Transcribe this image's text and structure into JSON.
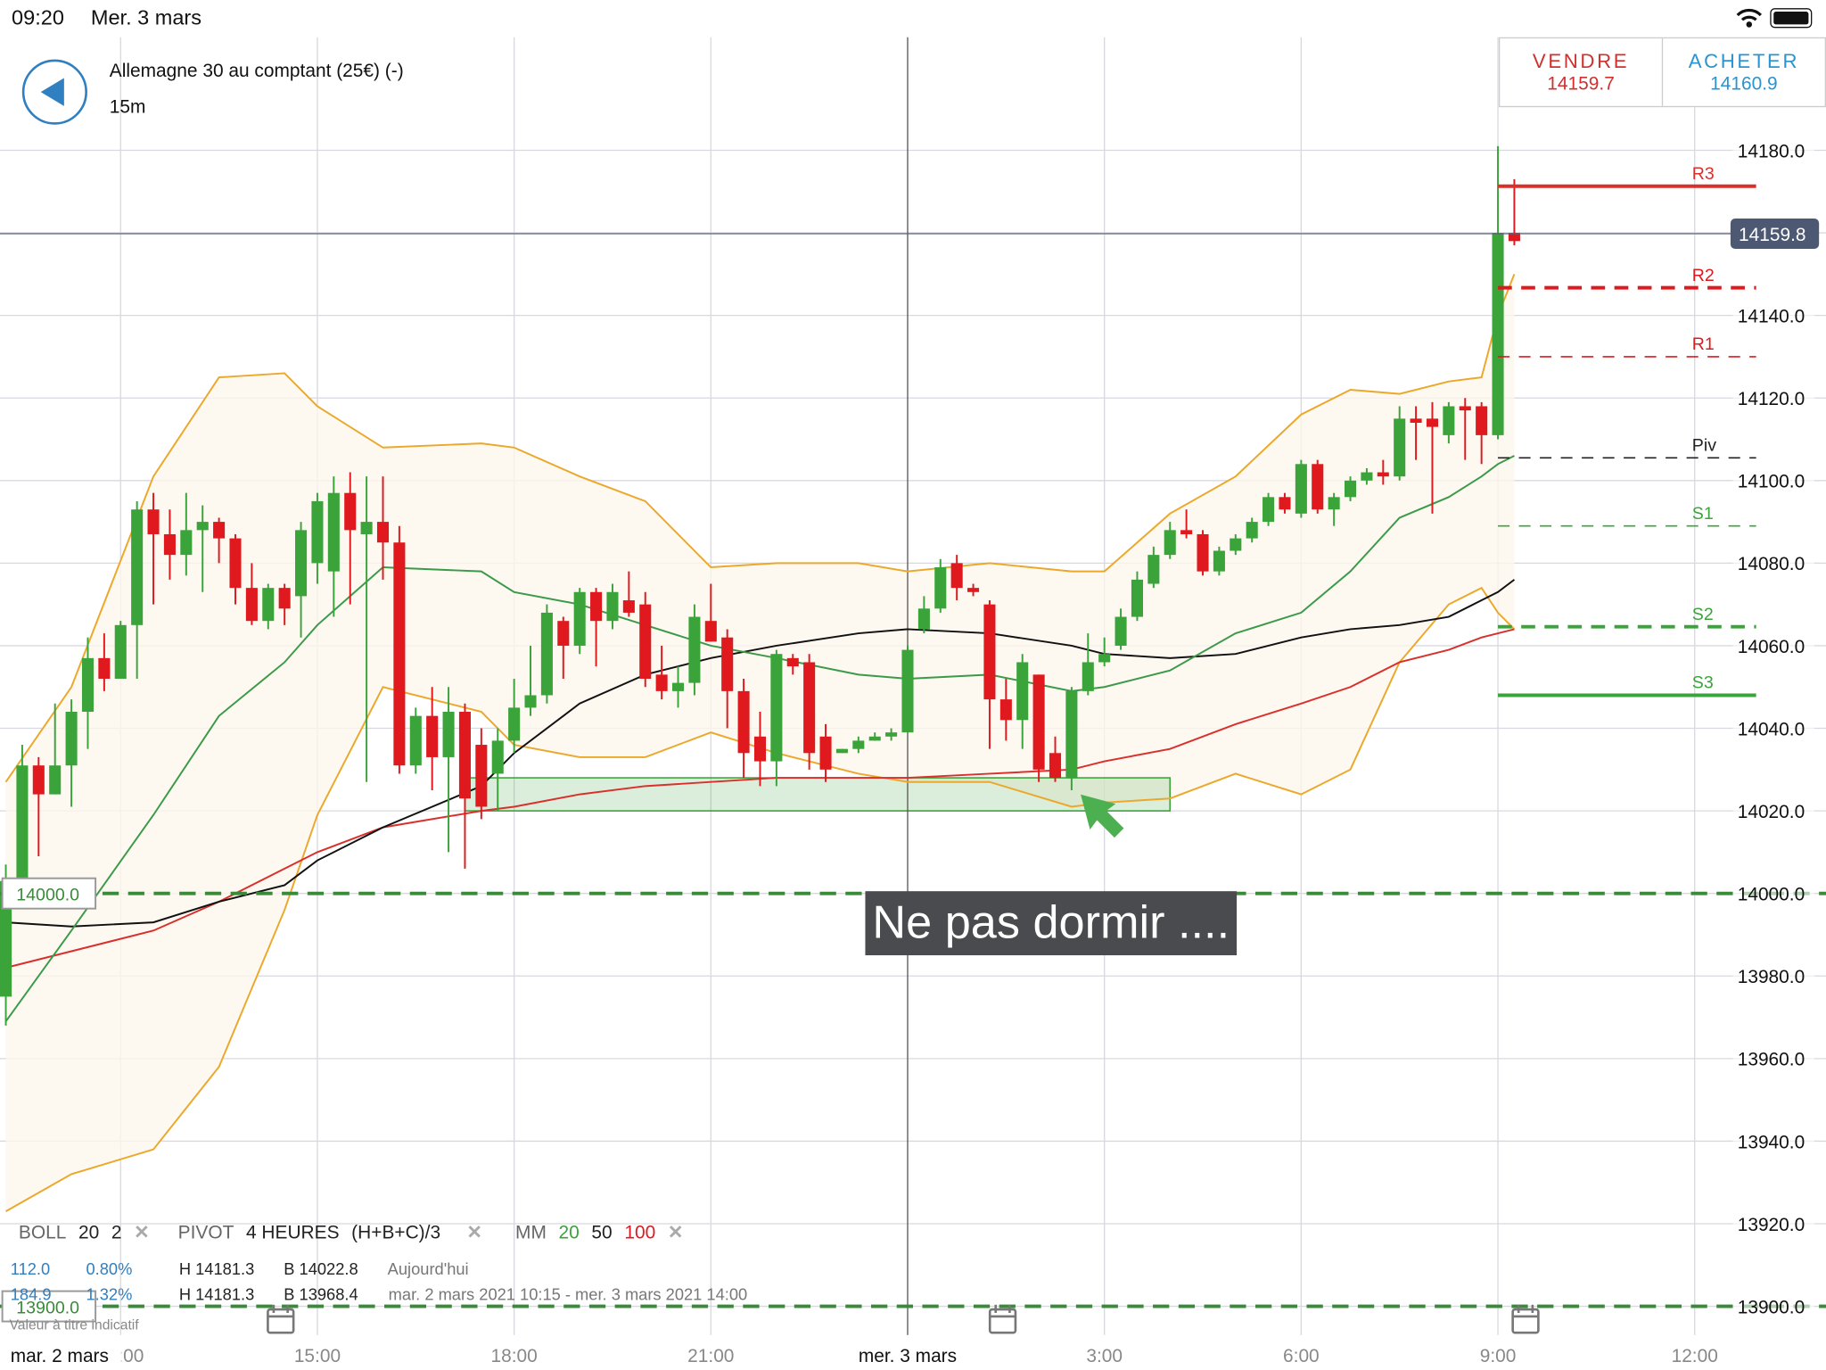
{
  "status_bar": {
    "time": "09:20",
    "date": "Mer. 3 mars"
  },
  "header": {
    "title": "Allemagne 30 au comptant (25€) (-)",
    "interval": "15m",
    "sell": {
      "label": "VENDRE",
      "price": "14159.7"
    },
    "buy": {
      "label": "ACHETER",
      "price": "14160.9"
    }
  },
  "annotation": "Ne pas dormir ....",
  "colors": {
    "up": "#3aa33a",
    "down": "#e0191e",
    "boll": "#eba82a",
    "mm20": "#3a9a4a",
    "mm50": "#111111",
    "mm100": "#d9302c",
    "sell": "#d0302f",
    "buy": "#2b93cf",
    "zone": "#3aa33a"
  },
  "legend": {
    "boll": {
      "name": "BOLL",
      "p1": "20",
      "p2": "2"
    },
    "pivot": {
      "name": "PIVOT",
      "period": "4 HEURES",
      "formula": "(H+B+C)/3"
    },
    "mm": {
      "name": "MM",
      "p1": "20",
      "p2": "50",
      "p3": "100"
    },
    "rows": [
      {
        "a": "112.0",
        "b": "0.80%",
        "h": "H 14181.3",
        "l": "B 14022.8",
        "period": "Aujourd'hui"
      },
      {
        "a": "184.9",
        "b": "1.32%",
        "h": "H 14181.3",
        "l": "B 13968.4",
        "period": "mar. 2 mars 2021 10:15 - mer. 3 mars 2021 14:00"
      }
    ],
    "disclaimer": "Valeur à titre indicatif"
  },
  "chart_data": {
    "type": "candlestick",
    "start": "03-02 10:15",
    "interval_minutes": 15,
    "ylim": [
      13900,
      14190
    ],
    "y_ticks": [
      "14180.0",
      "14140.0",
      "14120.0",
      "14100.0",
      "14080.0",
      "14060.0",
      "14040.0",
      "14020.0",
      "14000.0",
      "13980.0",
      "13960.0",
      "13940.0",
      "13920.0",
      "13900.0"
    ],
    "x_ticks": [
      {
        "t": "03-02 12:00",
        "label": "12:00"
      },
      {
        "t": "03-02 15:00",
        "label": "15:00"
      },
      {
        "t": "03-02 18:00",
        "label": "18:00"
      },
      {
        "t": "03-02 21:00",
        "label": "21:00"
      },
      {
        "t": "03-03 03:00",
        "label": "3:00"
      },
      {
        "t": "03-03 06:00",
        "label": "6:00"
      },
      {
        "t": "03-03 09:00",
        "label": "9:00"
      },
      {
        "t": "03-03 12:00",
        "label": "12:00"
      }
    ],
    "day_labels": [
      {
        "t": "03-02 10:15",
        "label": "mar. 2 mars"
      },
      {
        "t": "03-03 00:00",
        "label": "mer. 3 mars"
      }
    ],
    "ohlc": [
      [
        13975,
        14007,
        13968,
        14003
      ],
      [
        14003,
        14036,
        14002,
        14031
      ],
      [
        14031,
        14033,
        14009,
        14024
      ],
      [
        14024,
        14046,
        14024,
        14031
      ],
      [
        14031,
        14047,
        14021,
        14044
      ],
      [
        14044,
        14062,
        14035,
        14057
      ],
      [
        14057,
        14063,
        14049,
        14052
      ],
      [
        14052,
        14066,
        14052,
        14065
      ],
      [
        14065,
        14095,
        14052,
        14093
      ],
      [
        14093,
        14097,
        14070,
        14087
      ],
      [
        14087,
        14093,
        14076,
        14082
      ],
      [
        14082,
        14097,
        14077,
        14088
      ],
      [
        14088,
        14094,
        14073,
        14090
      ],
      [
        14090,
        14091,
        14080,
        14086
      ],
      [
        14086,
        14087,
        14070,
        14074
      ],
      [
        14074,
        14080,
        14065,
        14066
      ],
      [
        14066,
        14075,
        14064,
        14074
      ],
      [
        14074,
        14075,
        14065,
        14069
      ],
      [
        14072,
        14090,
        14062,
        14088
      ],
      [
        14080,
        14097,
        14075,
        14095
      ],
      [
        14078,
        14101,
        14067,
        14097
      ],
      [
        14097,
        14102,
        14070,
        14088
      ],
      [
        14087,
        14101,
        14027,
        14090
      ],
      [
        14090,
        14101,
        14076,
        14085
      ],
      [
        14085,
        14089,
        14029,
        14031
      ],
      [
        14031,
        14045,
        14029,
        14043
      ],
      [
        14043,
        14050,
        14025,
        14033
      ],
      [
        14033,
        14050,
        14010,
        14044
      ],
      [
        14044,
        14046,
        14006,
        14023
      ],
      [
        14036,
        14040,
        14018,
        14021
      ],
      [
        14029,
        14040,
        14020,
        14037
      ],
      [
        14037,
        14052,
        14034,
        14045
      ],
      [
        14045,
        14060,
        14043,
        14048
      ],
      [
        14048,
        14070,
        14046,
        14068
      ],
      [
        14066,
        14067,
        14052,
        14060
      ],
      [
        14060,
        14074,
        14058,
        14073
      ],
      [
        14073,
        14074,
        14055,
        14066
      ],
      [
        14066,
        14075,
        14064,
        14073
      ],
      [
        14071,
        14078,
        14067,
        14068
      ],
      [
        14070,
        14073,
        14050,
        14052
      ],
      [
        14053,
        14060,
        14047,
        14049
      ],
      [
        14049,
        14055,
        14045,
        14051
      ],
      [
        14051,
        14070,
        14048,
        14067
      ],
      [
        14066,
        14075,
        14061,
        14061
      ],
      [
        14062,
        14064,
        14040,
        14049
      ],
      [
        14049,
        14052,
        14028,
        14034
      ],
      [
        14038,
        14044,
        14026,
        14032
      ],
      [
        14032,
        14059,
        14026,
        14058
      ],
      [
        14057,
        14058,
        14053,
        14055
      ],
      [
        14056,
        14058,
        14030,
        14034
      ],
      [
        14038,
        14041,
        14027,
        14030
      ],
      [
        14034,
        14035,
        14034,
        14035
      ],
      [
        14035,
        14038,
        14034,
        14037
      ],
      [
        14037,
        14039,
        14037,
        14038
      ],
      [
        14038,
        14040,
        14037,
        14039
      ],
      [
        14039,
        14060,
        14039,
        14059
      ],
      [
        14064,
        14072,
        14063,
        14069
      ],
      [
        14069,
        14081,
        14068,
        14079
      ],
      [
        14080,
        14082,
        14071,
        14074
      ],
      [
        14074,
        14075,
        14072,
        14073
      ],
      [
        14070,
        14071,
        14035,
        14047
      ],
      [
        14047,
        14052,
        14037,
        14042
      ],
      [
        14042,
        14058,
        14035,
        14056
      ],
      [
        14053,
        14053,
        14027,
        14030
      ],
      [
        14034,
        14038,
        14027,
        14028
      ],
      [
        14028,
        14050,
        14025,
        14049
      ],
      [
        14049,
        14063,
        14048,
        14056
      ],
      [
        14056,
        14062,
        14055,
        14058
      ],
      [
        14060,
        14069,
        14059,
        14067
      ],
      [
        14067,
        14078,
        14066,
        14076
      ],
      [
        14075,
        14084,
        14074,
        14082
      ],
      [
        14082,
        14090,
        14081,
        14088
      ],
      [
        14088,
        14093,
        14086,
        14087
      ],
      [
        14087,
        14088,
        14077,
        14078
      ],
      [
        14078,
        14084,
        14077,
        14083
      ],
      [
        14083,
        14087,
        14082,
        14086
      ],
      [
        14086,
        14091,
        14085,
        14090
      ],
      [
        14090,
        14097,
        14089,
        14096
      ],
      [
        14096,
        14097,
        14092,
        14093
      ],
      [
        14092,
        14105,
        14091,
        14104
      ],
      [
        14104,
        14105,
        14092,
        14093
      ],
      [
        14093,
        14097,
        14089,
        14096
      ],
      [
        14096,
        14101,
        14095,
        14100
      ],
      [
        14100,
        14103,
        14099,
        14102
      ],
      [
        14102,
        14105,
        14099,
        14101
      ],
      [
        14101,
        14118,
        14100,
        14115
      ],
      [
        14115,
        14118,
        14105,
        14114
      ],
      [
        14115,
        14119,
        14092,
        14113
      ],
      [
        14111,
        14119,
        14109,
        14118
      ],
      [
        14118,
        14120,
        14105,
        14117
      ],
      [
        14118,
        14119,
        14104,
        14111
      ],
      [
        14111,
        14181,
        14110,
        14160
      ],
      [
        14160,
        14173,
        14157,
        14158
      ]
    ],
    "line_times": [
      "03-02 10:15",
      "03-02 11:15",
      "03-02 12:30",
      "03-02 13:30",
      "03-02 14:30",
      "03-02 15:00",
      "03-02 16:00",
      "03-02 17:30",
      "03-02 18:00",
      "03-02 19:00",
      "03-02 20:00",
      "03-02 21:00",
      "03-02 22:00",
      "03-02 23:15",
      "03-03 00:00",
      "03-03 01:15",
      "03-03 02:30",
      "03-03 03:00",
      "03-03 04:00",
      "03-03 05:00",
      "03-03 06:00",
      "03-03 06:45",
      "03-03 07:30",
      "03-03 08:15",
      "03-03 08:45",
      "03-03 09:00",
      "03-03 09:15"
    ],
    "boll_upper": [
      14027,
      14050,
      14101,
      14125,
      14126,
      14118,
      14108,
      14109,
      14108,
      14101,
      14095,
      14079,
      14080,
      14080,
      14078,
      14080,
      14078,
      14078,
      14092,
      14101,
      14116,
      14122,
      14121,
      14124,
      14125,
      14140,
      14150
    ],
    "boll_lower": [
      13923,
      13932,
      13938,
      13958,
      13996,
      14019,
      14050,
      14044,
      14036,
      14033,
      14033,
      14039,
      14034,
      14029,
      14027,
      14027,
      14021,
      14022,
      14023,
      14029,
      14024,
      14030,
      14056,
      14070,
      14074,
      14068,
      14064
    ],
    "mm20": [
      13969,
      13991,
      14019,
      14043,
      14056,
      14065,
      14079,
      14078,
      14073,
      14070,
      14065,
      14060,
      14057,
      14053,
      14052,
      14053,
      14049,
      14050,
      14054,
      14063,
      14068,
      14078,
      14091,
      14096,
      14101,
      14104,
      14106
    ],
    "mm50": [
      13993,
      13992,
      13993,
      13998,
      14002,
      14008,
      14016,
      14026,
      14034,
      14046,
      14053,
      14057,
      14060,
      14063,
      14064,
      14063,
      14060,
      14058,
      14057,
      14058,
      14062,
      14064,
      14065,
      14067,
      14071,
      14073,
      14076
    ],
    "mm100": [
      13982,
      13986,
      13991,
      13998,
      14006,
      14010,
      14016,
      14020,
      14021,
      14024,
      14026,
      14027,
      14028,
      14028,
      14028,
      14029,
      14030,
      14032,
      14035,
      14041,
      14046,
      14050,
      14056,
      14059,
      14062,
      14063,
      14064
    ],
    "pivots": [
      {
        "label": "R3",
        "value": 14171.3,
        "style": "solid-thick",
        "color": "#d9302c"
      },
      {
        "label": "R2",
        "value": 14146.7,
        "style": "dashed-thick",
        "color": "#e0191e"
      },
      {
        "label": "R1",
        "value": 14130.0,
        "style": "dashed-thin",
        "color": "#e0191e"
      },
      {
        "label": "Piv",
        "value": 14105.5,
        "style": "dashed-thin",
        "color": "#222222"
      },
      {
        "label": "S1",
        "value": 14089.0,
        "style": "dashed-thin",
        "color": "#3aa33a"
      },
      {
        "label": "S2",
        "value": 14064.6,
        "style": "dashed-thick",
        "color": "#3aa33a"
      },
      {
        "label": "S3",
        "value": 14048.0,
        "style": "solid-thick",
        "color": "#3aa33a"
      }
    ],
    "pivot_start": "03-03 09:00",
    "alerts": [
      {
        "label": "14000.0",
        "value": 14000.0
      },
      {
        "label": "13900.0",
        "value": 13900.0
      }
    ],
    "current_price": {
      "label": "14159.8",
      "value": 14159.8
    },
    "zone": {
      "from": "03-02 17:15",
      "to": "03-03 04:00",
      "low": 14020,
      "high": 14028
    },
    "crosshair": "03-03 00:00"
  }
}
